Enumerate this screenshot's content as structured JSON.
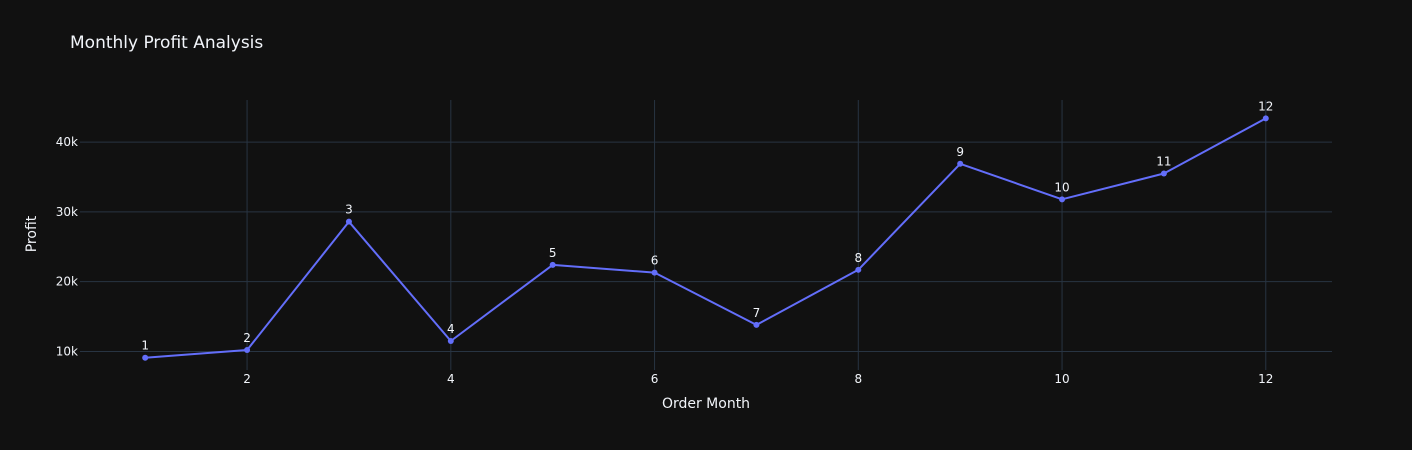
{
  "chart_data": {
    "type": "line",
    "title": "Monthly Profit Analysis",
    "xlabel": "Order Month",
    "ylabel": "Profit",
    "x": [
      1,
      2,
      3,
      4,
      5,
      6,
      7,
      8,
      9,
      10,
      11,
      12
    ],
    "series": [
      {
        "values": [
          9100,
          10200,
          28600,
          11500,
          22400,
          21300,
          13800,
          21700,
          36900,
          31800,
          35500,
          43400
        ],
        "point_labels": [
          "1",
          "2",
          "3",
          "4",
          "5",
          "6",
          "7",
          "8",
          "9",
          "10",
          "11",
          "12"
        ],
        "color": "#636efa"
      }
    ],
    "xticks": [
      2,
      4,
      6,
      8,
      10,
      12
    ],
    "xtick_labels": [
      "2",
      "4",
      "6",
      "8",
      "10",
      "12"
    ],
    "yticks": [
      10000,
      20000,
      30000,
      40000
    ],
    "ytick_labels": [
      "10k",
      "20k",
      "30k",
      "40k"
    ],
    "xlim": [
      0.36,
      12.65
    ],
    "ylim": [
      7340,
      46040
    ],
    "grid": true,
    "colors": {
      "background": "#111111",
      "grid": "#283442",
      "text": "#f2f5fa"
    }
  }
}
